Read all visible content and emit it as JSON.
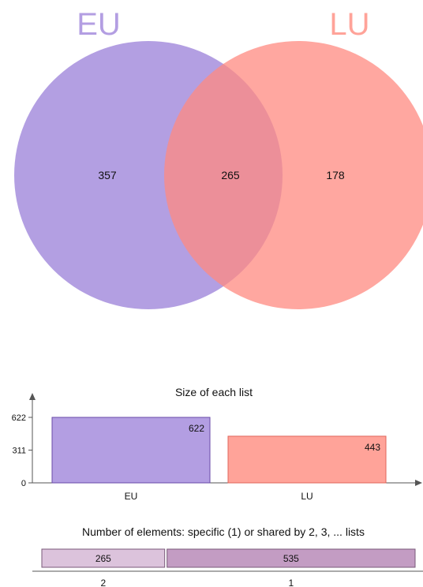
{
  "chart_data": [
    {
      "type": "venn",
      "sets": [
        {
          "name": "EU",
          "only": 357,
          "color": "#9a7fd8"
        },
        {
          "name": "LU",
          "only": 178,
          "color": "#ff8a80"
        }
      ],
      "intersection": 265,
      "intersection_color": "#d05a78"
    },
    {
      "type": "bar",
      "title": "Size of each list",
      "categories": [
        "EU",
        "LU"
      ],
      "values": [
        622,
        443
      ],
      "colors": [
        "#b39ee2",
        "#ffa399"
      ],
      "stroke_colors": [
        "#6a4aa8",
        "#e0645a"
      ],
      "yticks": [
        0,
        311,
        622
      ],
      "ylim": [
        0,
        622
      ]
    },
    {
      "type": "bar",
      "orientation": "horizontal-stacked",
      "title": "Number of elements: specific (1) or shared by 2, 3, ... lists",
      "segments": [
        {
          "label": "2",
          "value": 265,
          "color": "#dcc3dc"
        },
        {
          "label": "1",
          "value": 535,
          "color": "#c39cc3"
        }
      ]
    }
  ]
}
